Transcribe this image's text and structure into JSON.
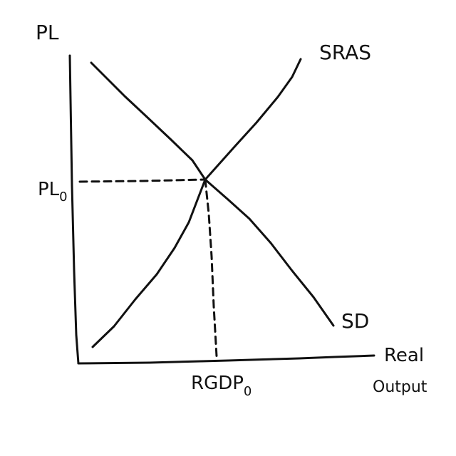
{
  "diagram": {
    "y_axis_label": "PL",
    "x_axis_label_line1": "Real",
    "x_axis_label_line2": "Output",
    "supply_curve_label": "SRAS",
    "demand_curve_label": "SD",
    "equilibrium_price_label": {
      "main": "PL",
      "subscript": "0"
    },
    "equilibrium_output_label": {
      "main": "RGDP",
      "subscript": "0"
    }
  }
}
